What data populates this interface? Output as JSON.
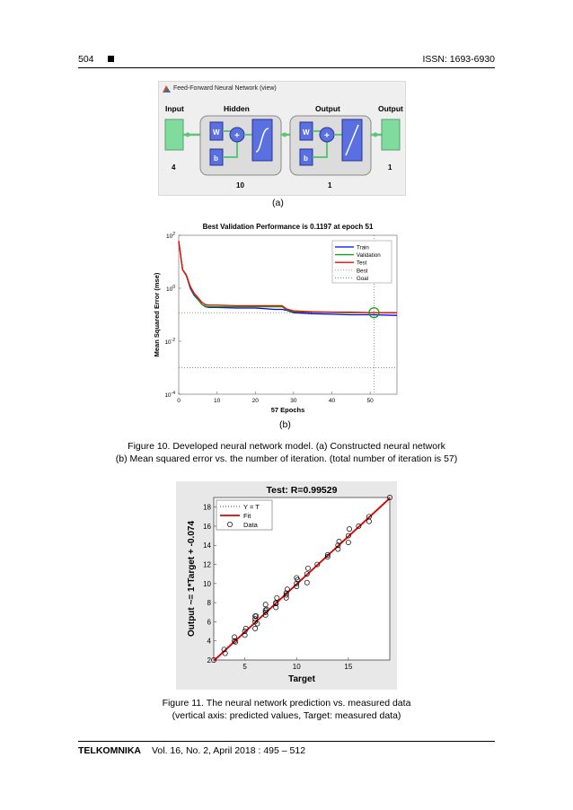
{
  "header": {
    "page": "504",
    "issn": "ISSN: 1693-6930"
  },
  "fig_a": {
    "window_title": "Feed-Forward Neural Network (view)",
    "input_label": "Input",
    "input_size": "4",
    "hidden_label": "Hidden",
    "hidden_size": "10",
    "output_layer_label": "Output",
    "output_layer_size": "1",
    "output_label": "Output",
    "output_size": "1",
    "w": "W",
    "b": "b",
    "plus": "+",
    "sub": "(a)"
  },
  "fig_b": {
    "sub": "(b)"
  },
  "fig_c": {},
  "caption10_line1": "Figure  10. Developed  neural  network  model.  (a)  Constructed  neural  network",
  "caption10_line2": "(b)  Mean  squared  error  vs.  the  number  of iteration.  (total  number  of iteration  is 57)",
  "caption11_line1": "Figure  11. The neural  network  prediction  vs.  measured  data",
  "caption11_line2": "(vertical  axis:  predicted  values,  Target:  measured  data)",
  "footer": {
    "journal": "TELKOMNIKA",
    "volume": "Vol.  16,  No.  2,  April 2018  :  495 – 512"
  },
  "chart_data": [
    {
      "type": "line",
      "title": "Best Validation Performance is 0.1197 at epoch 51",
      "xlabel": "57 Epochs",
      "ylabel": "Mean Squared Error  (mse)",
      "xlim": [
        0,
        57
      ],
      "ylim": [
        0.0001,
        100
      ],
      "yscale": "log",
      "xticks": [
        "0",
        "10",
        "20",
        "30",
        "40",
        "50"
      ],
      "yticks": [
        {
          "base": "10",
          "exp": "2"
        },
        {
          "base": "10",
          "exp": "0"
        },
        {
          "base": "10",
          "exp": "-2"
        },
        {
          "base": "10",
          "exp": "-4"
        }
      ],
      "legend_position": "top-right",
      "legend": [
        "Train",
        "Validation",
        "Test",
        "Best",
        "Goal"
      ],
      "colors": {
        "train": "#0000ff",
        "validation": "#00aa00",
        "test": "#ff0000",
        "best": "#666666",
        "goal": "#666666"
      },
      "best_point": {
        "epoch": 51,
        "mse": 0.1197
      },
      "goal": 0.001,
      "series": [
        {
          "name": "Train",
          "x": [
            0,
            1,
            2,
            3,
            4,
            5,
            6,
            7,
            8,
            10,
            15,
            20,
            25,
            27,
            28,
            30,
            35,
            40,
            45,
            50,
            57
          ],
          "values": [
            60,
            5,
            3,
            1,
            0.55,
            0.38,
            0.25,
            0.2,
            0.19,
            0.19,
            0.18,
            0.18,
            0.16,
            0.16,
            0.15,
            0.12,
            0.11,
            0.105,
            0.1,
            0.1,
            0.095
          ]
        },
        {
          "name": "Validation",
          "x": [
            0,
            1,
            2,
            3,
            4,
            5,
            6,
            7,
            8,
            10,
            15,
            20,
            25,
            27,
            28,
            30,
            35,
            40,
            45,
            50,
            57
          ],
          "values": [
            60,
            5,
            3,
            1.1,
            0.6,
            0.4,
            0.25,
            0.21,
            0.2,
            0.2,
            0.2,
            0.2,
            0.2,
            0.2,
            0.16,
            0.13,
            0.125,
            0.122,
            0.12,
            0.1197,
            0.119
          ]
        },
        {
          "name": "Test",
          "x": [
            0,
            1,
            2,
            3,
            4,
            5,
            6,
            7,
            8,
            10,
            15,
            20,
            25,
            27,
            28,
            30,
            35,
            40,
            45,
            50,
            57
          ],
          "values": [
            60,
            5,
            3.2,
            1.2,
            0.65,
            0.45,
            0.3,
            0.24,
            0.23,
            0.23,
            0.22,
            0.22,
            0.22,
            0.22,
            0.17,
            0.14,
            0.13,
            0.125,
            0.125,
            0.12,
            0.12
          ]
        }
      ]
    },
    {
      "type": "scatter",
      "title": "Test: R=0.99529",
      "xlabel": "Target",
      "ylabel": "Output ~= 1*Target + -0.074",
      "xlim": [
        2,
        19
      ],
      "ylim": [
        2,
        19
      ],
      "xticks": [
        "5",
        "10",
        "15"
      ],
      "yticks": [
        "2",
        "4",
        "6",
        "8",
        "10",
        "12",
        "14",
        "16",
        "18"
      ],
      "legend_position": "top-left",
      "legend": [
        "Y = T",
        "Fit",
        "Data"
      ],
      "fit": {
        "slope": 1,
        "intercept": -0.074
      },
      "colors": {
        "fit": "#e00000",
        "identity": "#000000",
        "data": "#000000"
      },
      "points": [
        [
          2,
          2
        ],
        [
          3,
          3.1
        ],
        [
          3.1,
          2.7
        ],
        [
          4,
          4
        ],
        [
          4,
          4.4
        ],
        [
          4.1,
          3.9
        ],
        [
          5,
          5
        ],
        [
          5,
          4.6
        ],
        [
          5.1,
          5.3
        ],
        [
          6,
          6
        ],
        [
          6,
          5.3
        ],
        [
          6.1,
          6.6
        ],
        [
          6,
          6.3
        ],
        [
          6.2,
          5.8
        ],
        [
          7,
          7
        ],
        [
          7,
          6.7
        ],
        [
          7.1,
          7.3
        ],
        [
          7,
          7.8
        ],
        [
          8,
          8
        ],
        [
          8,
          7.5
        ],
        [
          8.1,
          8.5
        ],
        [
          8,
          7.9
        ],
        [
          9,
          9
        ],
        [
          9,
          8.5
        ],
        [
          9.1,
          9.4
        ],
        [
          9,
          8.8
        ],
        [
          10,
          10
        ],
        [
          10,
          9.7
        ],
        [
          10.1,
          10.4
        ],
        [
          10,
          10.6
        ],
        [
          11,
          11
        ],
        [
          11,
          10.1
        ],
        [
          11.1,
          11.6
        ],
        [
          12,
          12
        ],
        [
          13,
          13
        ],
        [
          13,
          12.8
        ],
        [
          14,
          14
        ],
        [
          14,
          13.6
        ],
        [
          14.1,
          14.4
        ],
        [
          15,
          15
        ],
        [
          15,
          14.3
        ],
        [
          15.1,
          15.7
        ],
        [
          16,
          16
        ],
        [
          17,
          17
        ],
        [
          17,
          16.5
        ],
        [
          19,
          19
        ],
        [
          6,
          6.6
        ],
        [
          7,
          7.2
        ]
      ]
    }
  ]
}
